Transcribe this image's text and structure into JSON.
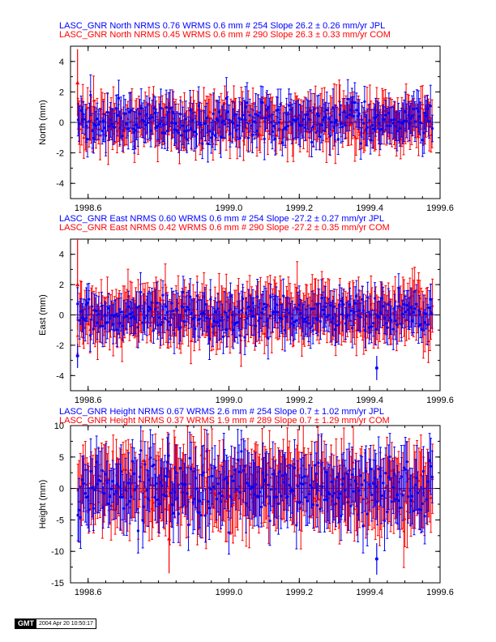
{
  "footer": {
    "logo": "GMT",
    "timestamp": "2004 Apr 20 10:50:17"
  },
  "chart_data": [
    {
      "type": "scatter",
      "panel": "north",
      "ylabel": "North (mm)",
      "xlim": [
        1998.55,
        1999.6
      ],
      "ylim": [
        -5,
        5
      ],
      "xticks": [
        1998.6,
        1999.0,
        1999.2,
        1999.4,
        1999.6
      ],
      "xtick_labels": [
        "1998.6",
        "1999.0",
        "1999.2",
        "1999.4",
        "1999.6"
      ],
      "yticks": [
        -4,
        -2,
        0,
        2,
        4
      ],
      "ytick_labels": [
        "-4",
        "-2",
        "0",
        "2",
        "4"
      ],
      "grid": false,
      "header_lines": [
        {
          "series": "JPL",
          "color": "#0000ff",
          "text": "LASC_GNR North NRMS 0.76 WRMS  0.6 mm # 254 Slope   26.2 ±  0.26 mm/yr JPL"
        },
        {
          "series": "COM",
          "color": "#ff0000",
          "text": "LASC_GNR North NRMS 0.45 WRMS  0.6 mm # 290 Slope   26.3 ±  0.33 mm/yr COM"
        }
      ],
      "series": [
        {
          "name": "JPL",
          "color": "#0000ff",
          "count": 254,
          "nrms": 0.76,
          "wrms_mm": 0.6,
          "slope_mm_yr": 26.2,
          "slope_sigma_mm_yr": 0.26,
          "scatter_mm": 0.6,
          "sigma_mm": 1.1
        },
        {
          "name": "COM",
          "color": "#ff0000",
          "count": 290,
          "nrms": 0.45,
          "wrms_mm": 0.6,
          "slope_mm_yr": 26.3,
          "slope_sigma_mm_yr": 0.33,
          "scatter_mm": 0.6,
          "sigma_mm": 1.3
        }
      ],
      "xrange_data": [
        1998.57,
        1999.58
      ],
      "outliers": [
        {
          "series": "COM",
          "x": 1998.57,
          "y": 2.6,
          "err": 2.2
        }
      ]
    },
    {
      "type": "scatter",
      "panel": "east",
      "ylabel": "East (mm)",
      "xlim": [
        1998.55,
        1999.6
      ],
      "ylim": [
        -5,
        5
      ],
      "xticks": [
        1998.6,
        1999.0,
        1999.2,
        1999.4,
        1999.6
      ],
      "xtick_labels": [
        "1998.6",
        "1999.0",
        "1999.2",
        "1999.4",
        "1999.6"
      ],
      "yticks": [
        -4,
        -2,
        0,
        2,
        4
      ],
      "ytick_labels": [
        "-4",
        "-2",
        "0",
        "2",
        "4"
      ],
      "grid": false,
      "header_lines": [
        {
          "series": "JPL",
          "color": "#0000ff",
          "text": "LASC_GNR East NRMS 0.60 WRMS  0.6 mm # 254 Slope  -27.2 ±  0.27 mm/yr JPL"
        },
        {
          "series": "COM",
          "color": "#ff0000",
          "text": "LASC_GNR East NRMS 0.42 WRMS  0.6 mm # 290 Slope  -27.2 ±  0.35 mm/yr COM"
        }
      ],
      "series": [
        {
          "name": "JPL",
          "color": "#0000ff",
          "count": 254,
          "nrms": 0.6,
          "wrms_mm": 0.6,
          "slope_mm_yr": -27.2,
          "slope_sigma_mm_yr": 0.27,
          "scatter_mm": 0.65,
          "sigma_mm": 1.1
        },
        {
          "name": "COM",
          "color": "#ff0000",
          "count": 290,
          "nrms": 0.42,
          "wrms_mm": 0.6,
          "slope_mm_yr": -27.2,
          "slope_sigma_mm_yr": 0.35,
          "scatter_mm": 0.6,
          "sigma_mm": 1.5
        }
      ],
      "xrange_data": [
        1998.57,
        1999.58
      ],
      "outliers": [
        {
          "series": "COM",
          "x": 1998.57,
          "y": 2.0,
          "err": 3.0
        },
        {
          "series": "JPL",
          "x": 1999.42,
          "y": -3.5,
          "err": 0.8
        },
        {
          "series": "JPL",
          "x": 1998.57,
          "y": -2.7,
          "err": 0.8
        }
      ]
    },
    {
      "type": "scatter",
      "panel": "height",
      "ylabel": "Height (mm)",
      "xlim": [
        1998.55,
        1999.6
      ],
      "ylim": [
        -15,
        10
      ],
      "xticks": [
        1998.6,
        1999.0,
        1999.2,
        1999.4,
        1999.6
      ],
      "xtick_labels": [
        "1998.6",
        "1999.0",
        "1999.2",
        "1999.4",
        "1999.6"
      ],
      "yticks": [
        -15,
        -10,
        -5,
        0,
        5,
        10
      ],
      "ytick_labels": [
        "-15",
        "-10",
        "-5",
        "0",
        "5",
        "10"
      ],
      "grid": false,
      "header_lines": [
        {
          "series": "JPL",
          "color": "#0000ff",
          "text": "LASC_GNR Height NRMS 0.67 WRMS  2.6 mm # 254 Slope    0.7 ±  1.02 mm/yr JPL"
        },
        {
          "series": "COM",
          "color": "#ff0000",
          "text": "LASC_GNR Height NRMS 0.37 WRMS  1.9 mm # 289 Slope    0.7 ±  1.29 mm/yr COM"
        }
      ],
      "series": [
        {
          "name": "JPL",
          "color": "#0000ff",
          "count": 254,
          "nrms": 0.67,
          "wrms_mm": 2.6,
          "slope_mm_yr": 0.7,
          "slope_sigma_mm_yr": 1.02,
          "scatter_mm": 2.6,
          "sigma_mm": 4.2
        },
        {
          "name": "COM",
          "color": "#ff0000",
          "count": 289,
          "nrms": 0.37,
          "wrms_mm": 1.9,
          "slope_mm_yr": 0.7,
          "slope_sigma_mm_yr": 1.29,
          "scatter_mm": 1.9,
          "sigma_mm": 5.2
        }
      ],
      "xrange_data": [
        1998.57,
        1999.58
      ],
      "outliers": [
        {
          "series": "JPL",
          "x": 1999.42,
          "y": -11.2,
          "err": 2.5
        },
        {
          "series": "COM",
          "x": 1998.83,
          "y": -8.0,
          "err": 5.5
        }
      ]
    }
  ]
}
